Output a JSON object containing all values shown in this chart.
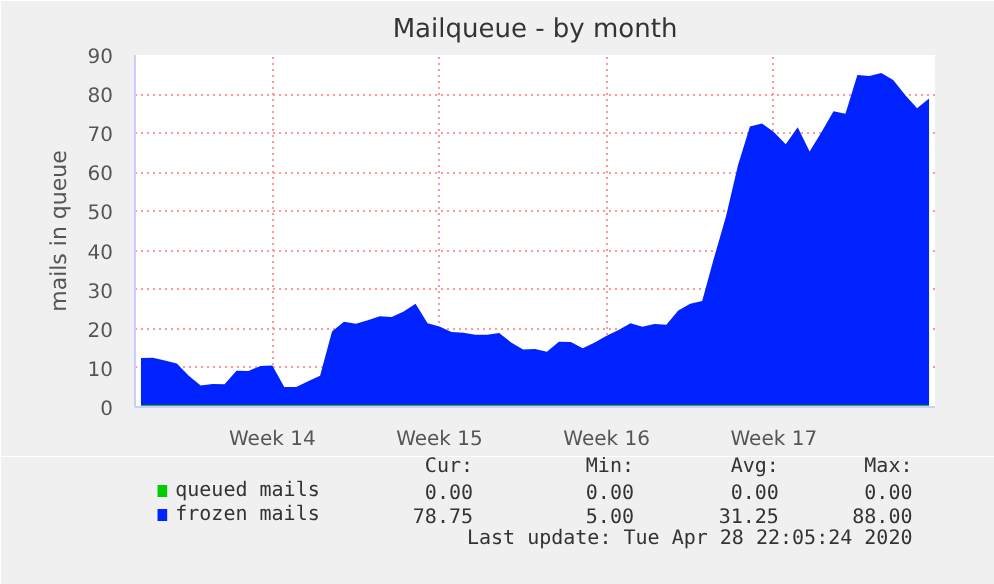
{
  "chart_data": {
    "type": "area",
    "title": "Mailqueue - by month",
    "ylabel": "mails in queue",
    "categories": [
      null,
      null,
      null,
      null,
      null,
      null,
      null,
      null,
      null,
      null,
      null,
      "Week 14",
      null,
      null,
      null,
      null,
      null,
      null,
      null,
      null,
      null,
      null,
      null,
      null,
      null,
      "Week 15",
      null,
      null,
      null,
      null,
      null,
      null,
      null,
      null,
      null,
      null,
      null,
      null,
      null,
      "Week 16",
      null,
      null,
      null,
      null,
      null,
      null,
      null,
      null,
      null,
      null,
      null,
      null,
      null,
      "Week 17",
      null,
      null,
      null,
      null,
      null,
      null,
      null,
      null,
      null,
      null,
      null,
      null,
      null
    ],
    "ylim": [
      0,
      90
    ],
    "yticks": [
      0,
      10,
      20,
      30,
      40,
      50,
      60,
      70,
      80,
      90
    ],
    "grid": true,
    "legend": "bottom",
    "series": [
      {
        "name": "queued mails",
        "type": "line",
        "color": "#00cc00",
        "values": [
          0,
          0,
          0,
          0,
          0,
          0,
          0,
          0,
          0,
          0,
          0,
          0,
          0,
          0,
          0,
          0,
          0,
          0,
          0,
          0,
          0,
          0,
          0,
          0,
          0,
          0,
          0,
          0,
          0,
          0,
          0,
          0,
          0,
          0,
          0,
          0,
          0,
          0,
          0,
          0,
          0,
          0,
          0,
          0,
          0,
          0,
          0,
          0,
          0,
          0,
          0,
          0,
          0,
          0,
          0,
          0,
          0,
          0,
          0,
          0,
          0,
          0,
          0,
          0,
          0,
          0,
          0
        ]
      },
      {
        "name": "frozen mails",
        "color": "#0022ff",
        "values": [
          12.5,
          12.6,
          11.9,
          11.1,
          8,
          5.5,
          5.9,
          5.8,
          9.3,
          9.2,
          10.5,
          10.6,
          5.1,
          5.1,
          6.6,
          8,
          19.3,
          21.8,
          21.3,
          22.2,
          23.2,
          23,
          24.4,
          26.4,
          21.4,
          20.6,
          19.2,
          19,
          18.5,
          18.5,
          18.9,
          16.5,
          14.7,
          14.8,
          14.1,
          16.7,
          16.6,
          15,
          16.5,
          18.2,
          19.7,
          21.4,
          20.5,
          21.2,
          21,
          24.7,
          26.4,
          27.1,
          38.2,
          48.8,
          61.8,
          71.7,
          72.5,
          70.3,
          67.2,
          71.5,
          65.3,
          70.3,
          75.6,
          75,
          84.9,
          84.6,
          85.4,
          83.6,
          79.8,
          76.4,
          78.9
        ]
      }
    ],
    "annotations": [
      "Cur:",
      "Min:",
      "Avg:",
      "Max:",
      "0.00",
      "0.00",
      "0.00",
      "0.00",
      "78.75",
      "5.00",
      "31.25",
      "88.00",
      "Last update: Tue Apr 28 22:05:24 2020"
    ]
  }
}
